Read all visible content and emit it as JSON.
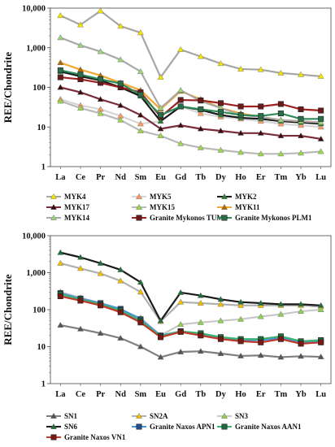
{
  "chart_data": [
    {
      "type": "line",
      "ylabel": "REE/Chondrite",
      "xlabel": "",
      "yscale": "log",
      "ylim": [
        1,
        10000
      ],
      "y_ticks": [
        "1",
        "10",
        "100",
        "1,000",
        "10,000"
      ],
      "categories": [
        "La",
        "Ce",
        "Pr",
        "Nd",
        "Sm",
        "Eu",
        "Gd",
        "Tb",
        "Dy",
        "Ho",
        "Er",
        "Tm",
        "Yb",
        "Lu"
      ],
      "legend_position": "bottom",
      "series": [
        {
          "name": "MYK4",
          "color": "#a6a6a6",
          "marker": "triangle",
          "marker_color": "#f2e600",
          "values": [
            6500,
            3800,
            8500,
            3500,
            2400,
            180,
            900,
            600,
            400,
            290,
            280,
            230,
            210,
            190
          ]
        },
        {
          "name": "MYK5",
          "color": "#d6d6d6",
          "marker": "triangle",
          "marker_color": "#ff9966",
          "values": [
            50,
            35,
            28,
            19,
            12,
            14,
            33,
            22,
            18,
            16,
            14,
            12,
            11,
            10
          ]
        },
        {
          "name": "MYK2",
          "color": "#1a1a1a",
          "marker": "triangle",
          "marker_color": "#2e7d32",
          "values": [
            250,
            190,
            150,
            100,
            60,
            14,
            33,
            27,
            20,
            17,
            16,
            14,
            13,
            12
          ]
        },
        {
          "name": "MYK17",
          "color": "#7b2c3a",
          "marker": "triangle",
          "marker_color": "#3b0a0a",
          "values": [
            100,
            75,
            50,
            35,
            20,
            9,
            11,
            9,
            8,
            7,
            7,
            6,
            6,
            5
          ]
        },
        {
          "name": "MYK15",
          "color": "#b9b9b9",
          "marker": "triangle",
          "marker_color": "#9bd84a",
          "values": [
            45,
            30,
            22,
            15,
            8,
            6,
            3.8,
            3,
            2.6,
            2.3,
            2.1,
            2.1,
            2.2,
            2.4
          ]
        },
        {
          "name": "MYK11",
          "color": "#f0a830",
          "marker": "triangle",
          "marker_color": "#b06a00",
          "values": [
            420,
            280,
            200,
            130,
            85,
            28,
            80,
            50,
            30,
            22,
            18,
            15,
            14,
            13
          ]
        },
        {
          "name": "MYK14",
          "color": "#a9a9a9",
          "marker": "triangle",
          "marker_color": "#9cd67a",
          "values": [
            1800,
            1150,
            800,
            500,
            250,
            30,
            85,
            45,
            30,
            20,
            18,
            15,
            14,
            13
          ]
        },
        {
          "name": "Granite Mykonos TUM1",
          "color": "#a02020",
          "marker": "square",
          "marker_color": "#6b1a1a",
          "values": [
            180,
            160,
            130,
            100,
            75,
            18,
            48,
            47,
            40,
            33,
            33,
            38,
            28,
            26
          ]
        },
        {
          "name": "Granite Mykonos PLM1",
          "color": "#2e8b57",
          "marker": "square",
          "marker_color": "#2a6e4a",
          "values": [
            270,
            210,
            160,
            125,
            65,
            20,
            33,
            28,
            24,
            20,
            19,
            22,
            16,
            16
          ]
        }
      ]
    },
    {
      "type": "line",
      "ylabel": "REE/Chondrite",
      "xlabel": "",
      "yscale": "log",
      "ylim": [
        1,
        10000
      ],
      "y_ticks": [
        "1",
        "10",
        "100",
        "1,000",
        "10,000"
      ],
      "categories": [
        "La",
        "Ce",
        "Pr",
        "Nd",
        "Sm",
        "Eu",
        "Gd",
        "Tb",
        "Dy",
        "Ho",
        "Er",
        "Tm",
        "Yb",
        "Lu"
      ],
      "legend_position": "bottom",
      "series": [
        {
          "name": "SN1",
          "color": "#7f7f7f",
          "marker": "triangle",
          "marker_color": "#555555",
          "values": [
            38,
            30,
            23,
            17,
            10,
            5.2,
            7.2,
            7.5,
            6.5,
            5.6,
            5.8,
            5.2,
            5.5,
            5.3
          ]
        },
        {
          "name": "SN2A",
          "color": "#b0b0b0",
          "marker": "triangle",
          "marker_color": "#f0c000",
          "values": [
            1800,
            1300,
            950,
            600,
            300,
            48,
            160,
            150,
            140,
            130,
            130,
            130,
            130,
            120
          ]
        },
        {
          "name": "SN3",
          "color": "#c8c8c8",
          "marker": "triangle",
          "marker_color": "#8fd14f",
          "values": [
            300,
            210,
            150,
            100,
            60,
            20,
            40,
            45,
            50,
            55,
            65,
            75,
            90,
            100
          ]
        },
        {
          "name": "SN6",
          "color": "#1a1a1a",
          "marker": "triangle",
          "marker_color": "#1f6b3a",
          "values": [
            3500,
            2600,
            1800,
            1200,
            550,
            50,
            290,
            240,
            190,
            160,
            150,
            140,
            140,
            130
          ]
        },
        {
          "name": "Granite Naxos APN1",
          "color": "#4a90d9",
          "marker": "square",
          "marker_color": "#1f4f8a",
          "values": [
            280,
            200,
            150,
            105,
            55,
            20,
            26,
            21,
            18,
            15,
            15,
            17,
            13,
            14
          ]
        },
        {
          "name": "Granite Naxos AAN1",
          "color": "#3cb371",
          "marker": "square",
          "marker_color": "#1f6b3a",
          "values": [
            260,
            190,
            140,
            95,
            50,
            19,
            26,
            23,
            18,
            16,
            16,
            19,
            14,
            15
          ]
        },
        {
          "name": "Granite Naxos VN1",
          "color": "#c0392b",
          "marker": "square",
          "marker_color": "#7b1a12",
          "values": [
            230,
            175,
            130,
            85,
            45,
            18,
            25,
            20,
            16,
            14,
            13,
            16,
            12,
            13
          ]
        }
      ]
    }
  ]
}
